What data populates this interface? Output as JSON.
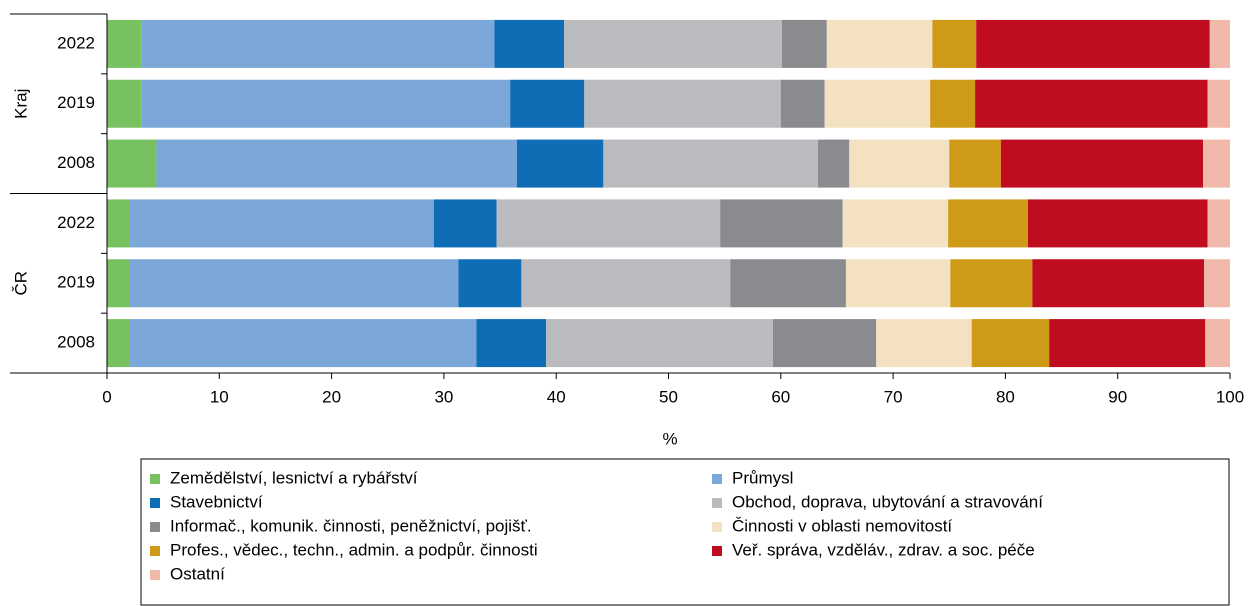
{
  "chart_data": {
    "type": "stacked-bar-horizontal",
    "xlabel": "%",
    "xlim": [
      0,
      100
    ],
    "xticks": [
      0,
      10,
      20,
      30,
      40,
      50,
      60,
      70,
      80,
      90,
      100
    ],
    "legend": "bottom",
    "groups": [
      {
        "name": "Kraj",
        "categories": [
          "2022",
          "2019",
          "2008"
        ]
      },
      {
        "name": "ČR",
        "categories": [
          "2022",
          "2019",
          "2008"
        ]
      }
    ],
    "series": [
      {
        "name": "Zemědělství, lesnictví a rybářství",
        "color": "#78c160",
        "values": [
          3.1,
          3.1,
          4.4,
          2.0,
          2.0,
          2.0
        ]
      },
      {
        "name": "Průmysl",
        "color": "#7ba7d9",
        "values": [
          31.4,
          32.8,
          32.1,
          27.1,
          29.3,
          30.9
        ]
      },
      {
        "name": "Stavebnictví",
        "color": "#0f6db6",
        "values": [
          6.2,
          6.6,
          7.7,
          5.6,
          5.6,
          6.2
        ]
      },
      {
        "name": "Obchod, doprava, ubytování a stravování",
        "color": "#b9bbbe",
        "values": [
          19.4,
          17.5,
          19.1,
          19.9,
          18.6,
          20.2
        ]
      },
      {
        "name": "Informač., komunik. činnosti, peněžnictví, pojišť.",
        "color": "#898b8e",
        "values": [
          4.0,
          3.9,
          2.8,
          10.9,
          10.3,
          9.2
        ]
      },
      {
        "name": "Činnosti v oblasti nemovitostí",
        "color": "#f4e1c2",
        "values": [
          9.4,
          9.4,
          8.9,
          9.4,
          9.3,
          8.5
        ]
      },
      {
        "name": "Profes., vědec., techn., admin. a podpůr. činnosti",
        "color": "#cf9a17",
        "values": [
          3.9,
          4.0,
          4.6,
          7.1,
          7.3,
          6.9
        ]
      },
      {
        "name": "Veř. správa, vzděláv., zdrav. a soc. péče",
        "color": "#c00c1f",
        "values": [
          20.8,
          20.7,
          18.0,
          16.0,
          15.3,
          13.9
        ]
      },
      {
        "name": "Ostatní",
        "color": "#f1b9a9",
        "values": [
          1.8,
          2.0,
          2.4,
          2.0,
          2.3,
          2.2
        ]
      }
    ]
  }
}
